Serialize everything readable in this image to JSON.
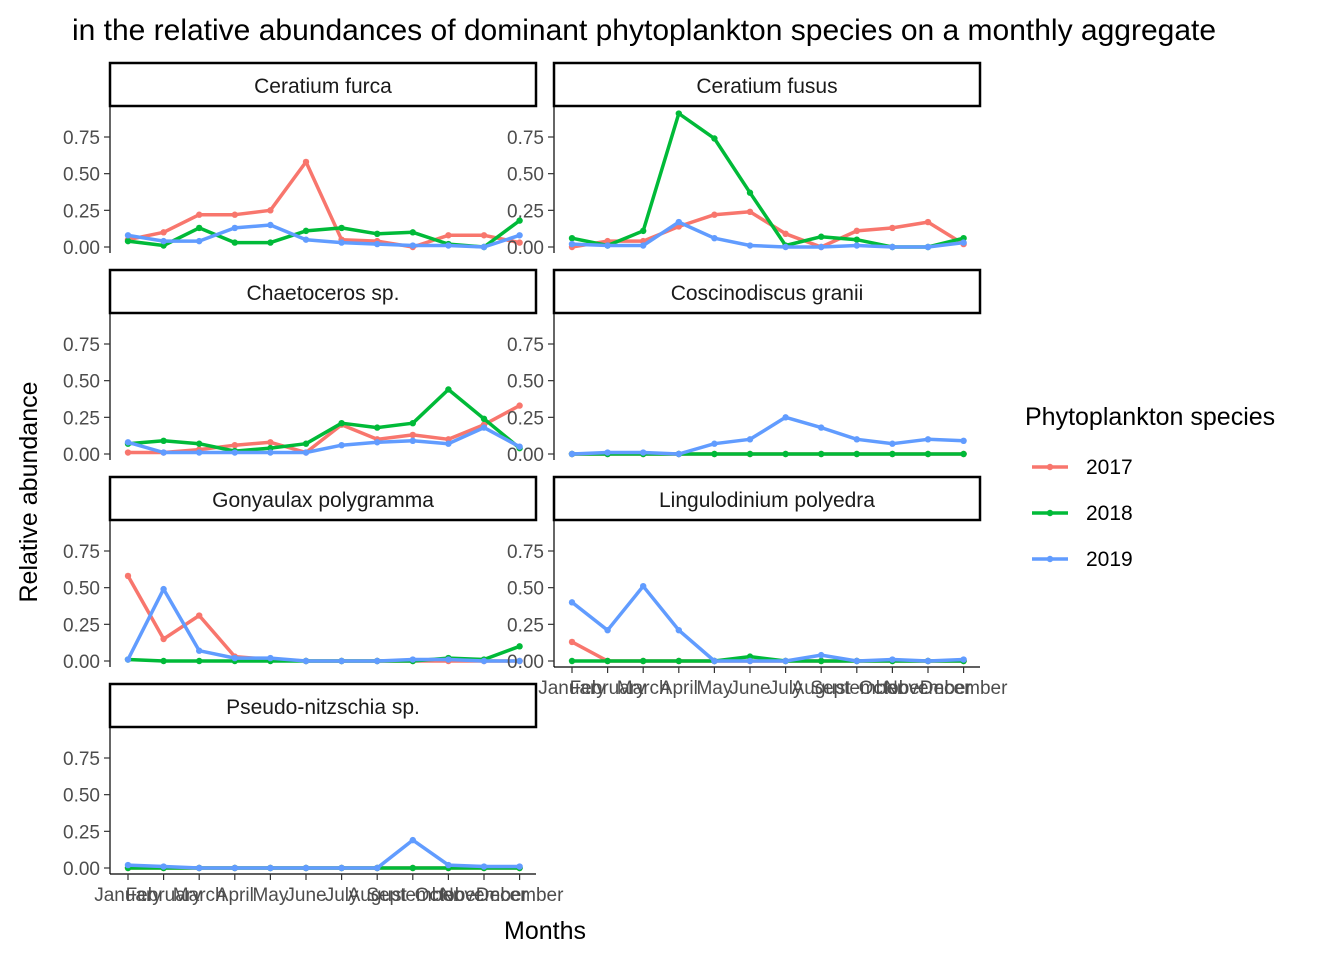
{
  "chart_data": {
    "type": "line",
    "title": "in the relative abundances of dominant phytoplankton species on a monthly aggregate",
    "xlabel": "Months",
    "ylabel": "Relative abundance",
    "ylim": [
      0,
      0.9
    ],
    "yticks": [
      "0.00",
      "0.25",
      "0.50",
      "0.75"
    ],
    "categories": [
      "January",
      "February",
      "March",
      "April",
      "May",
      "June",
      "July",
      "August",
      "September",
      "October",
      "November",
      "December"
    ],
    "legend": {
      "title": "Phytoplankton species",
      "position": "right",
      "items": [
        {
          "name": "2017",
          "color": "#F8766D"
        },
        {
          "name": "2018",
          "color": "#00BA38"
        },
        {
          "name": "2019",
          "color": "#619CFF"
        }
      ]
    },
    "grid": false,
    "panels": [
      {
        "name": "Ceratium furca",
        "series": [
          {
            "name": "2017",
            "values": [
              0.05,
              0.1,
              0.22,
              0.22,
              0.25,
              0.58,
              0.05,
              0.04,
              0.0,
              0.08,
              0.08,
              0.03
            ]
          },
          {
            "name": "2018",
            "values": [
              0.04,
              0.01,
              0.13,
              0.03,
              0.03,
              0.11,
              0.13,
              0.09,
              0.1,
              0.02,
              0.0,
              0.18
            ]
          },
          {
            "name": "2019",
            "values": [
              0.08,
              0.04,
              0.04,
              0.13,
              0.15,
              0.05,
              0.03,
              0.02,
              0.01,
              0.01,
              0.0,
              0.08
            ]
          }
        ]
      },
      {
        "name": "Ceratium fusus",
        "series": [
          {
            "name": "2017",
            "values": [
              0.0,
              0.04,
              0.04,
              0.14,
              0.22,
              0.24,
              0.09,
              0.0,
              0.11,
              0.13,
              0.17,
              0.02
            ]
          },
          {
            "name": "2018",
            "values": [
              0.06,
              0.01,
              0.11,
              0.91,
              0.74,
              0.37,
              0.01,
              0.07,
              0.05,
              0.0,
              0.0,
              0.06
            ]
          },
          {
            "name": "2019",
            "values": [
              0.02,
              0.01,
              0.01,
              0.17,
              0.06,
              0.01,
              0.0,
              0.0,
              0.01,
              0.0,
              0.0,
              0.03
            ]
          }
        ]
      },
      {
        "name": "Chaetoceros sp.",
        "series": [
          {
            "name": "2017",
            "values": [
              0.01,
              0.01,
              0.03,
              0.06,
              0.08,
              0.01,
              0.2,
              0.1,
              0.13,
              0.1,
              0.2,
              0.33
            ]
          },
          {
            "name": "2018",
            "values": [
              0.07,
              0.09,
              0.07,
              0.02,
              0.04,
              0.07,
              0.21,
              0.18,
              0.21,
              0.44,
              0.24,
              0.04
            ]
          },
          {
            "name": "2019",
            "values": [
              0.08,
              0.01,
              0.01,
              0.01,
              0.01,
              0.01,
              0.06,
              0.08,
              0.09,
              0.07,
              0.18,
              0.05
            ]
          }
        ]
      },
      {
        "name": "Coscinodiscus granii",
        "series": [
          {
            "name": "2017",
            "values": [
              0.0,
              0.0,
              0.0,
              0.0,
              0.0,
              0.0,
              0.0,
              0.0,
              0.0,
              0.0,
              0.0,
              0.0
            ]
          },
          {
            "name": "2018",
            "values": [
              0.0,
              0.0,
              0.0,
              0.0,
              0.0,
              0.0,
              0.0,
              0.0,
              0.0,
              0.0,
              0.0,
              0.0
            ]
          },
          {
            "name": "2019",
            "values": [
              0.0,
              0.01,
              0.01,
              0.0,
              0.07,
              0.1,
              0.25,
              0.18,
              0.1,
              0.07,
              0.1,
              0.09
            ]
          }
        ]
      },
      {
        "name": "Gonyaulax polygramma",
        "series": [
          {
            "name": "2017",
            "values": [
              0.58,
              0.15,
              0.31,
              0.03,
              0.01,
              0.0,
              0.0,
              0.0,
              0.0,
              0.0,
              0.0,
              0.0
            ]
          },
          {
            "name": "2018",
            "values": [
              0.01,
              0.0,
              0.0,
              0.0,
              0.0,
              0.0,
              0.0,
              0.0,
              0.0,
              0.02,
              0.01,
              0.1
            ]
          },
          {
            "name": "2019",
            "values": [
              0.01,
              0.49,
              0.07,
              0.02,
              0.02,
              0.0,
              0.0,
              0.0,
              0.01,
              0.01,
              0.0,
              0.0
            ]
          }
        ]
      },
      {
        "name": "Lingulodinium polyedra",
        "series": [
          {
            "name": "2017",
            "values": [
              0.13,
              0.0,
              0.0,
              0.0,
              0.0,
              0.0,
              0.0,
              0.0,
              0.0,
              0.0,
              0.0,
              0.0
            ]
          },
          {
            "name": "2018",
            "values": [
              0.0,
              0.0,
              0.0,
              0.0,
              0.0,
              0.03,
              0.0,
              0.0,
              0.0,
              0.0,
              0.0,
              0.0
            ]
          },
          {
            "name": "2019",
            "values": [
              0.4,
              0.21,
              0.51,
              0.21,
              0.0,
              0.0,
              0.0,
              0.04,
              0.0,
              0.01,
              0.0,
              0.01
            ]
          }
        ]
      },
      {
        "name": "Pseudo-nitzschia sp.",
        "series": [
          {
            "name": "2017",
            "values": [
              0.0,
              0.0,
              0.0,
              0.0,
              0.0,
              0.0,
              0.0,
              0.0,
              0.0,
              0.0,
              0.0,
              0.0
            ]
          },
          {
            "name": "2018",
            "values": [
              0.0,
              0.0,
              0.0,
              0.0,
              0.0,
              0.0,
              0.0,
              0.0,
              0.0,
              0.0,
              0.0,
              0.0
            ]
          },
          {
            "name": "2019",
            "values": [
              0.02,
              0.01,
              0.0,
              0.0,
              0.0,
              0.0,
              0.0,
              0.0,
              0.19,
              0.02,
              0.01,
              0.01
            ]
          }
        ]
      }
    ]
  }
}
